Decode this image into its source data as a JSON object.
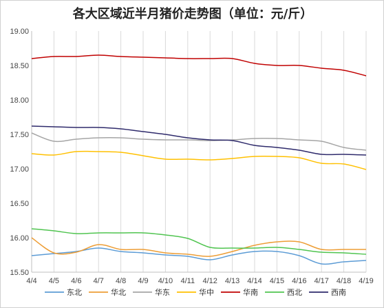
{
  "chart_data": {
    "type": "line",
    "title": "各大区域近半月猪价走势图（单位：元/斤）",
    "categories": [
      "4/4",
      "4/5",
      "4/6",
      "4/7",
      "4/8",
      "4/9",
      "4/10",
      "4/11",
      "4/12",
      "4/13",
      "4/14",
      "4/15",
      "4/16",
      "4/17",
      "4/18",
      "4/19"
    ],
    "ylim": [
      15.5,
      19.0
    ],
    "yticks": [
      "15.50",
      "16.00",
      "16.50",
      "17.00",
      "17.50",
      "18.00",
      "18.50",
      "19.00"
    ],
    "grid": "vertical",
    "legend": "bottom",
    "series": [
      {
        "name": "东北",
        "color": "#5b9bd5",
        "values": [
          15.74,
          15.77,
          15.8,
          15.85,
          15.8,
          15.78,
          15.75,
          15.73,
          15.68,
          15.75,
          15.8,
          15.8,
          15.74,
          15.62,
          15.65,
          15.67
        ]
      },
      {
        "name": "华北",
        "color": "#ed9d35",
        "values": [
          16.0,
          15.78,
          15.79,
          15.9,
          15.83,
          15.83,
          15.78,
          15.76,
          15.73,
          15.8,
          15.89,
          15.94,
          15.94,
          15.83,
          15.83,
          15.83
        ]
      },
      {
        "name": "华东",
        "color": "#a5a5a5",
        "values": [
          17.52,
          17.4,
          17.43,
          17.45,
          17.45,
          17.43,
          17.42,
          17.42,
          17.41,
          17.42,
          17.44,
          17.44,
          17.42,
          17.4,
          17.31,
          17.27
        ]
      },
      {
        "name": "华中",
        "color": "#ffc000",
        "values": [
          17.22,
          17.2,
          17.25,
          17.25,
          17.24,
          17.19,
          17.14,
          17.14,
          17.13,
          17.15,
          17.18,
          17.18,
          17.16,
          17.08,
          17.07,
          16.99
        ]
      },
      {
        "name": "华南",
        "color": "#c00000",
        "values": [
          18.6,
          18.63,
          18.63,
          18.65,
          18.63,
          18.62,
          18.61,
          18.6,
          18.6,
          18.6,
          18.53,
          18.5,
          18.5,
          18.46,
          18.43,
          18.35
        ]
      },
      {
        "name": "西北",
        "color": "#4fc44f",
        "values": [
          16.13,
          16.1,
          16.06,
          16.07,
          16.07,
          16.07,
          16.04,
          15.99,
          15.86,
          15.85,
          15.85,
          15.86,
          15.83,
          15.79,
          15.78,
          15.76
        ]
      },
      {
        "name": "西南",
        "color": "#2e2a6b",
        "values": [
          17.62,
          17.61,
          17.6,
          17.6,
          17.58,
          17.54,
          17.5,
          17.45,
          17.42,
          17.41,
          17.34,
          17.31,
          17.27,
          17.21,
          17.21,
          17.2
        ]
      }
    ]
  }
}
